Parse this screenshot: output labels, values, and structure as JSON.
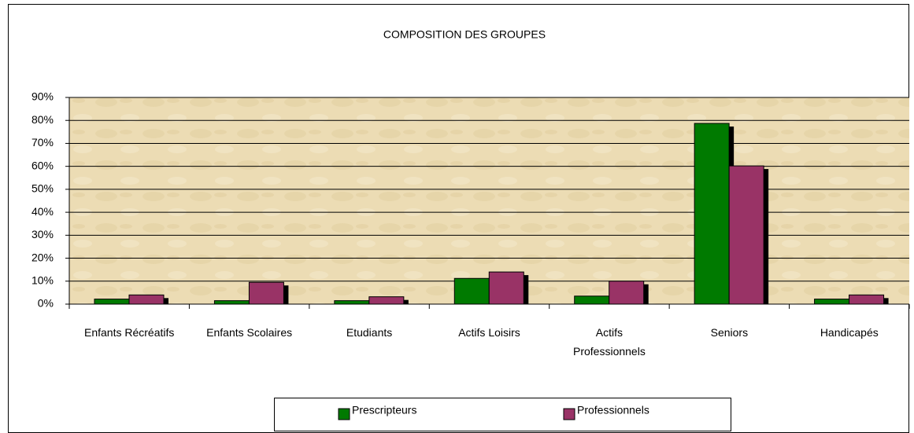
{
  "chart_data": {
    "type": "bar",
    "title": "COMPOSITION DES GROUPES",
    "categories": [
      "Enfants Récréatifs",
      "Enfants Scolaires",
      "Etudiants",
      "Actifs Loisirs",
      "Actifs Professionnels",
      "Seniors",
      "Handicapés"
    ],
    "series": [
      {
        "name": "Prescripteurs",
        "color": "#007a00",
        "values": [
          2.2,
          1.5,
          1.5,
          11.2,
          3.5,
          78.7,
          2.2
        ]
      },
      {
        "name": "Professionnels",
        "color": "#993366",
        "values": [
          4,
          9.5,
          3.2,
          14,
          10,
          60.2,
          4
        ]
      }
    ],
    "ylim": [
      0,
      90
    ],
    "yticks": [
      {
        "value": 0,
        "label": "0%"
      },
      {
        "value": 10,
        "label": "10%"
      },
      {
        "value": 20,
        "label": "20%"
      },
      {
        "value": 30,
        "label": "30%"
      },
      {
        "value": 40,
        "label": "40%"
      },
      {
        "value": 50,
        "label": "50%"
      },
      {
        "value": 60,
        "label": "60%"
      },
      {
        "value": 70,
        "label": "70%"
      },
      {
        "value": 80,
        "label": "80%"
      },
      {
        "value": 90,
        "label": "90%"
      }
    ],
    "grid": true,
    "legend": "bottom"
  }
}
